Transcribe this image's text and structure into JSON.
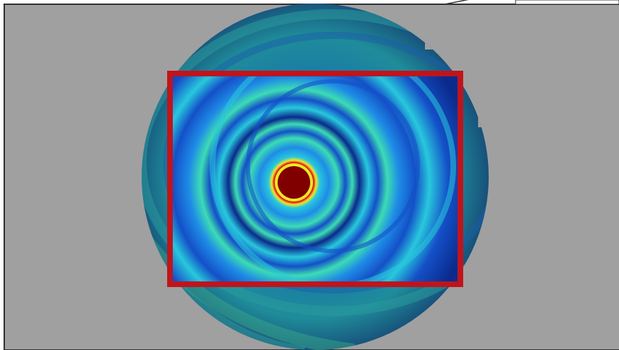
{
  "figure": {
    "background_color": "#a0a0a0",
    "frame_color": "#303030",
    "highlight_box_color": "#c0141c",
    "center_spot_color": "#800000",
    "colormap": [
      "#0a2a8c",
      "#1450c8",
      "#1e8ce6",
      "#28c8dc",
      "#3cdcb4",
      "#f0e628",
      "#e61e14",
      "#800000"
    ]
  }
}
